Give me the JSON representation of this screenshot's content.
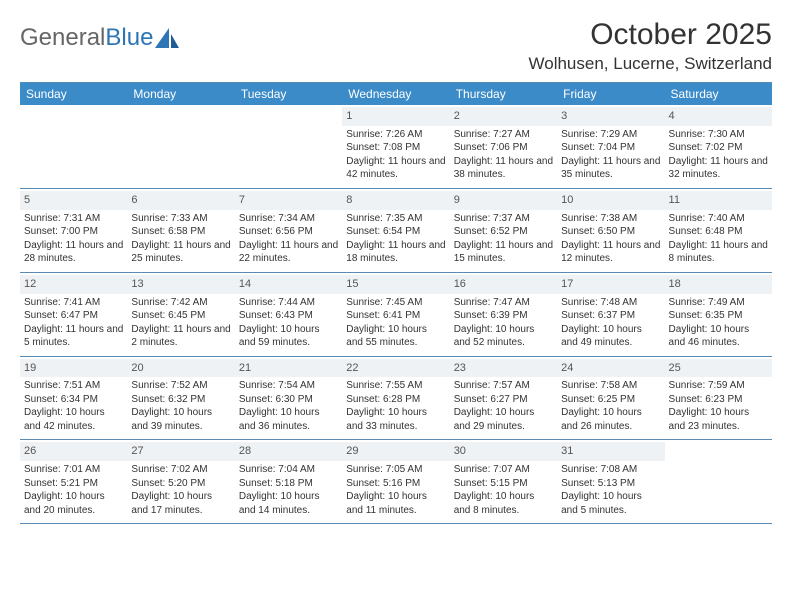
{
  "logo": {
    "part1": "General",
    "part2": "Blue"
  },
  "title": "October 2025",
  "location": "Wolhusen, Lucerne, Switzerland",
  "colors": {
    "header_bg": "#3b8bc9",
    "header_text": "#ffffff",
    "rule": "#5b8bb5",
    "daynum_bg": "#eef2f5",
    "text": "#333333"
  },
  "day_headers": [
    "Sunday",
    "Monday",
    "Tuesday",
    "Wednesday",
    "Thursday",
    "Friday",
    "Saturday"
  ],
  "weeks": [
    [
      {
        "n": "",
        "empty": true
      },
      {
        "n": "",
        "empty": true
      },
      {
        "n": "",
        "empty": true
      },
      {
        "n": "1",
        "sunrise": "Sunrise: 7:26 AM",
        "sunset": "Sunset: 7:08 PM",
        "daylight": "Daylight: 11 hours and 42 minutes."
      },
      {
        "n": "2",
        "sunrise": "Sunrise: 7:27 AM",
        "sunset": "Sunset: 7:06 PM",
        "daylight": "Daylight: 11 hours and 38 minutes."
      },
      {
        "n": "3",
        "sunrise": "Sunrise: 7:29 AM",
        "sunset": "Sunset: 7:04 PM",
        "daylight": "Daylight: 11 hours and 35 minutes."
      },
      {
        "n": "4",
        "sunrise": "Sunrise: 7:30 AM",
        "sunset": "Sunset: 7:02 PM",
        "daylight": "Daylight: 11 hours and 32 minutes."
      }
    ],
    [
      {
        "n": "5",
        "sunrise": "Sunrise: 7:31 AM",
        "sunset": "Sunset: 7:00 PM",
        "daylight": "Daylight: 11 hours and 28 minutes."
      },
      {
        "n": "6",
        "sunrise": "Sunrise: 7:33 AM",
        "sunset": "Sunset: 6:58 PM",
        "daylight": "Daylight: 11 hours and 25 minutes."
      },
      {
        "n": "7",
        "sunrise": "Sunrise: 7:34 AM",
        "sunset": "Sunset: 6:56 PM",
        "daylight": "Daylight: 11 hours and 22 minutes."
      },
      {
        "n": "8",
        "sunrise": "Sunrise: 7:35 AM",
        "sunset": "Sunset: 6:54 PM",
        "daylight": "Daylight: 11 hours and 18 minutes."
      },
      {
        "n": "9",
        "sunrise": "Sunrise: 7:37 AM",
        "sunset": "Sunset: 6:52 PM",
        "daylight": "Daylight: 11 hours and 15 minutes."
      },
      {
        "n": "10",
        "sunrise": "Sunrise: 7:38 AM",
        "sunset": "Sunset: 6:50 PM",
        "daylight": "Daylight: 11 hours and 12 minutes."
      },
      {
        "n": "11",
        "sunrise": "Sunrise: 7:40 AM",
        "sunset": "Sunset: 6:48 PM",
        "daylight": "Daylight: 11 hours and 8 minutes."
      }
    ],
    [
      {
        "n": "12",
        "sunrise": "Sunrise: 7:41 AM",
        "sunset": "Sunset: 6:47 PM",
        "daylight": "Daylight: 11 hours and 5 minutes."
      },
      {
        "n": "13",
        "sunrise": "Sunrise: 7:42 AM",
        "sunset": "Sunset: 6:45 PM",
        "daylight": "Daylight: 11 hours and 2 minutes."
      },
      {
        "n": "14",
        "sunrise": "Sunrise: 7:44 AM",
        "sunset": "Sunset: 6:43 PM",
        "daylight": "Daylight: 10 hours and 59 minutes."
      },
      {
        "n": "15",
        "sunrise": "Sunrise: 7:45 AM",
        "sunset": "Sunset: 6:41 PM",
        "daylight": "Daylight: 10 hours and 55 minutes."
      },
      {
        "n": "16",
        "sunrise": "Sunrise: 7:47 AM",
        "sunset": "Sunset: 6:39 PM",
        "daylight": "Daylight: 10 hours and 52 minutes."
      },
      {
        "n": "17",
        "sunrise": "Sunrise: 7:48 AM",
        "sunset": "Sunset: 6:37 PM",
        "daylight": "Daylight: 10 hours and 49 minutes."
      },
      {
        "n": "18",
        "sunrise": "Sunrise: 7:49 AM",
        "sunset": "Sunset: 6:35 PM",
        "daylight": "Daylight: 10 hours and 46 minutes."
      }
    ],
    [
      {
        "n": "19",
        "sunrise": "Sunrise: 7:51 AM",
        "sunset": "Sunset: 6:34 PM",
        "daylight": "Daylight: 10 hours and 42 minutes."
      },
      {
        "n": "20",
        "sunrise": "Sunrise: 7:52 AM",
        "sunset": "Sunset: 6:32 PM",
        "daylight": "Daylight: 10 hours and 39 minutes."
      },
      {
        "n": "21",
        "sunrise": "Sunrise: 7:54 AM",
        "sunset": "Sunset: 6:30 PM",
        "daylight": "Daylight: 10 hours and 36 minutes."
      },
      {
        "n": "22",
        "sunrise": "Sunrise: 7:55 AM",
        "sunset": "Sunset: 6:28 PM",
        "daylight": "Daylight: 10 hours and 33 minutes."
      },
      {
        "n": "23",
        "sunrise": "Sunrise: 7:57 AM",
        "sunset": "Sunset: 6:27 PM",
        "daylight": "Daylight: 10 hours and 29 minutes."
      },
      {
        "n": "24",
        "sunrise": "Sunrise: 7:58 AM",
        "sunset": "Sunset: 6:25 PM",
        "daylight": "Daylight: 10 hours and 26 minutes."
      },
      {
        "n": "25",
        "sunrise": "Sunrise: 7:59 AM",
        "sunset": "Sunset: 6:23 PM",
        "daylight": "Daylight: 10 hours and 23 minutes."
      }
    ],
    [
      {
        "n": "26",
        "sunrise": "Sunrise: 7:01 AM",
        "sunset": "Sunset: 5:21 PM",
        "daylight": "Daylight: 10 hours and 20 minutes."
      },
      {
        "n": "27",
        "sunrise": "Sunrise: 7:02 AM",
        "sunset": "Sunset: 5:20 PM",
        "daylight": "Daylight: 10 hours and 17 minutes."
      },
      {
        "n": "28",
        "sunrise": "Sunrise: 7:04 AM",
        "sunset": "Sunset: 5:18 PM",
        "daylight": "Daylight: 10 hours and 14 minutes."
      },
      {
        "n": "29",
        "sunrise": "Sunrise: 7:05 AM",
        "sunset": "Sunset: 5:16 PM",
        "daylight": "Daylight: 10 hours and 11 minutes."
      },
      {
        "n": "30",
        "sunrise": "Sunrise: 7:07 AM",
        "sunset": "Sunset: 5:15 PM",
        "daylight": "Daylight: 10 hours and 8 minutes."
      },
      {
        "n": "31",
        "sunrise": "Sunrise: 7:08 AM",
        "sunset": "Sunset: 5:13 PM",
        "daylight": "Daylight: 10 hours and 5 minutes."
      },
      {
        "n": "",
        "empty": true
      }
    ]
  ]
}
